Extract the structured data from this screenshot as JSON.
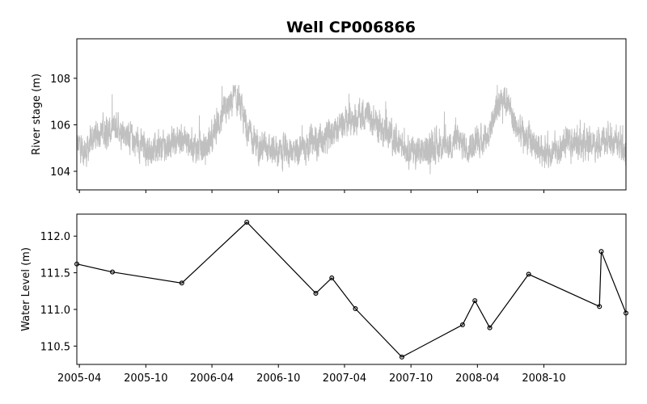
{
  "chart_data": [
    {
      "type": "line",
      "title": "Well CP006866",
      "ylabel": "River stage (m)",
      "ylim": [
        103.2,
        109.7
      ],
      "yticks": [
        104,
        106,
        108
      ],
      "xlim": [
        "2005-03-25",
        "2009-05-15"
      ],
      "grid": false,
      "series": [
        {
          "color": "#c0c0c0",
          "description_points": [
            [
              "2005-04-01",
              105.1
            ],
            [
              "2005-04-20",
              104.8
            ],
            [
              "2005-05-10",
              105.5
            ],
            [
              "2005-06-01",
              105.8
            ],
            [
              "2005-06-20",
              105.6
            ],
            [
              "2005-07-15",
              106.0
            ],
            [
              "2005-08-10",
              105.6
            ],
            [
              "2005-09-01",
              105.3
            ],
            [
              "2005-10-01",
              105.0
            ],
            [
              "2005-11-01",
              104.9
            ],
            [
              "2005-12-01",
              105.2
            ],
            [
              "2006-01-01",
              105.4
            ],
            [
              "2006-02-01",
              105.2
            ],
            [
              "2006-03-01",
              104.9
            ],
            [
              "2006-03-20",
              105.1
            ],
            [
              "2006-04-10",
              105.8
            ],
            [
              "2006-05-01",
              106.4
            ],
            [
              "2006-05-20",
              106.8
            ],
            [
              "2006-06-05",
              107.2
            ],
            [
              "2006-06-20",
              106.6
            ],
            [
              "2006-07-10",
              105.7
            ],
            [
              "2006-08-01",
              105.2
            ],
            [
              "2006-09-01",
              104.9
            ],
            [
              "2006-10-01",
              104.8
            ],
            [
              "2006-11-01",
              104.9
            ],
            [
              "2006-12-01",
              105.0
            ],
            [
              "2007-01-01",
              105.2
            ],
            [
              "2007-02-01",
              105.3
            ],
            [
              "2007-03-01",
              105.7
            ],
            [
              "2007-04-01",
              106.1
            ],
            [
              "2007-05-01",
              106.3
            ],
            [
              "2007-06-01",
              106.4
            ],
            [
              "2007-07-01",
              106.0
            ],
            [
              "2007-08-01",
              105.6
            ],
            [
              "2007-09-01",
              105.3
            ],
            [
              "2007-10-01",
              104.9
            ],
            [
              "2007-11-01",
              104.8
            ],
            [
              "2007-12-01",
              105.0
            ],
            [
              "2008-01-01",
              105.1
            ],
            [
              "2008-02-01",
              105.3
            ],
            [
              "2008-03-01",
              105.1
            ],
            [
              "2008-04-01",
              105.2
            ],
            [
              "2008-05-01",
              105.6
            ],
            [
              "2008-05-25",
              106.8
            ],
            [
              "2008-06-10",
              107.3
            ],
            [
              "2008-06-25",
              106.9
            ],
            [
              "2008-07-15",
              105.9
            ],
            [
              "2008-08-15",
              105.4
            ],
            [
              "2008-09-15",
              105.0
            ],
            [
              "2008-10-15",
              104.9
            ],
            [
              "2008-11-15",
              105.0
            ],
            [
              "2008-12-15",
              105.2
            ],
            [
              "2009-01-15",
              105.3
            ],
            [
              "2009-02-15",
              105.1
            ],
            [
              "2009-03-15",
              105.4
            ],
            [
              "2009-04-15",
              105.2
            ],
            [
              "2009-05-15",
              105.0
            ]
          ]
        }
      ]
    },
    {
      "type": "line",
      "ylabel": "Water Level (m)",
      "ylim": [
        110.25,
        112.3
      ],
      "yticks": [
        110.5,
        111.0,
        111.5,
        112.0
      ],
      "ytick_labels": [
        "110.5",
        "111.0",
        "111.5",
        "112.0"
      ],
      "xlim": [
        "2005-03-25",
        "2009-05-15"
      ],
      "xticks": [
        "2005-04-01",
        "2005-10-01",
        "2006-04-01",
        "2006-10-01",
        "2007-04-01",
        "2007-10-01",
        "2008-04-01",
        "2008-10-01"
      ],
      "xtick_labels": [
        "2005-04",
        "2005-10",
        "2006-04",
        "2006-10",
        "2007-04",
        "2007-10",
        "2008-04",
        "2008-10"
      ],
      "grid": false,
      "series": [
        {
          "color": "#000000",
          "marker": "circle-open",
          "x": [
            "2005-03-25",
            "2005-07-01",
            "2006-01-08",
            "2006-07-06",
            "2007-01-12",
            "2007-02-25",
            "2007-05-01",
            "2007-09-06",
            "2008-02-20",
            "2008-03-25",
            "2008-05-05",
            "2008-08-20",
            "2009-03-03",
            "2009-03-08",
            "2009-05-15"
          ],
          "y": [
            111.62,
            111.51,
            111.36,
            112.19,
            111.22,
            111.43,
            111.01,
            110.35,
            110.79,
            111.12,
            110.75,
            111.48,
            111.04,
            111.79,
            110.95
          ]
        }
      ]
    }
  ]
}
